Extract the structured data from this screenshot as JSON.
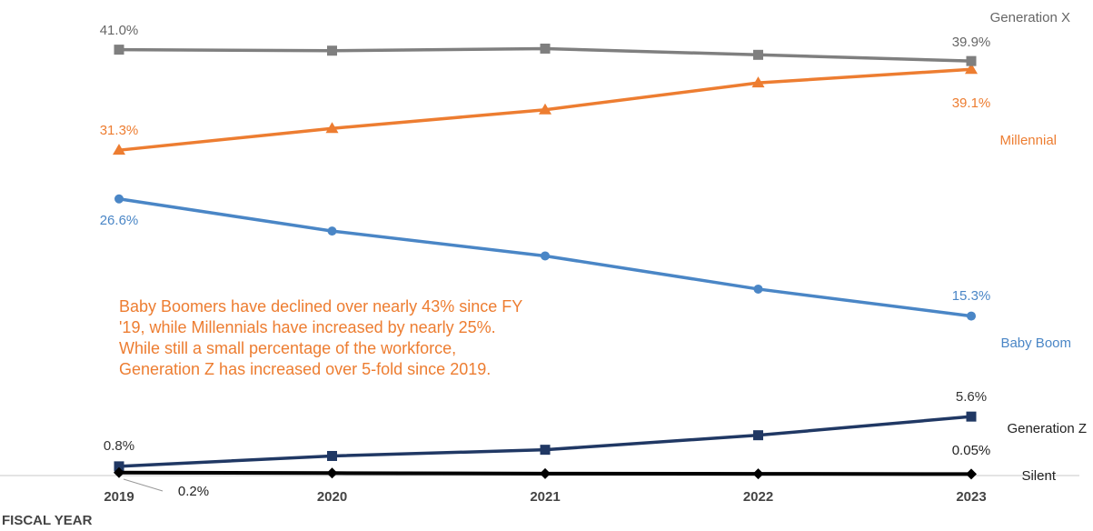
{
  "chart_data": {
    "type": "line",
    "title": "",
    "xlabel": "FISCAL YEAR",
    "ylabel": "",
    "categories": [
      "2019",
      "2020",
      "2021",
      "2022",
      "2023"
    ],
    "ylim": [
      0,
      45
    ],
    "grid": false,
    "legend": "none (series labeled at right end)",
    "series": [
      {
        "name": "Generation X",
        "color": "#7F7F7F",
        "marker": "square",
        "values": [
          41.0,
          40.9,
          41.1,
          40.5,
          39.9
        ],
        "labels": {
          "first": "41.0%",
          "last": "39.9%"
        }
      },
      {
        "name": "Millennial",
        "color": "#ED7D31",
        "marker": "triangle",
        "values": [
          31.3,
          33.4,
          35.2,
          37.8,
          39.1
        ],
        "labels": {
          "first": "31.3%",
          "last": "39.1%"
        }
      },
      {
        "name": "Baby Boom",
        "color": "#4A86C6",
        "marker": "circle",
        "values": [
          26.6,
          23.5,
          21.1,
          17.9,
          15.3
        ],
        "labels": {
          "first": "26.6%",
          "last": "15.3%"
        }
      },
      {
        "name": "Generation Z",
        "color": "#203864",
        "marker": "square",
        "values": [
          0.8,
          1.8,
          2.4,
          3.8,
          5.6
        ],
        "labels": {
          "first": "0.8%",
          "last": "5.6%"
        }
      },
      {
        "name": "Silent",
        "color": "#000000",
        "marker": "diamond",
        "values": [
          0.2,
          0.15,
          0.1,
          0.08,
          0.05
        ],
        "labels": {
          "first": "0.2%",
          "last": "0.05%"
        }
      }
    ],
    "annotation": {
      "lines": [
        "Baby Boomers have declined over nearly 43% since FY",
        "'19,  while Millennials have increased by nearly 25%.",
        "While still a small percentage of the workforce,",
        "Generation Z has increased over 5-fold since 2019."
      ],
      "color": "#ED7D31"
    }
  }
}
